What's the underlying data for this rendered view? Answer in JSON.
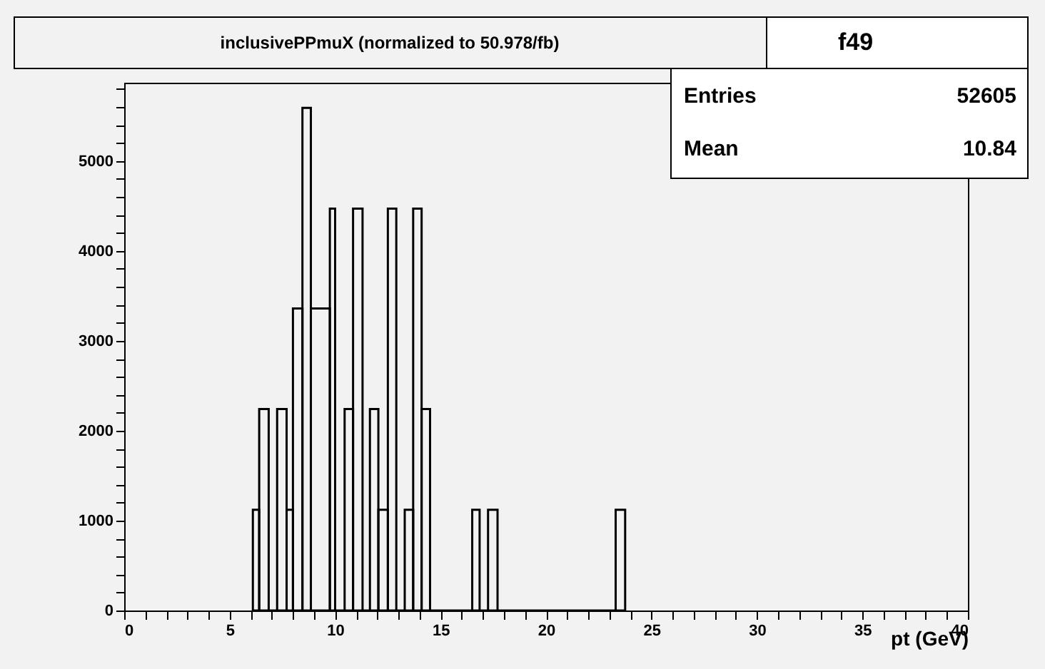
{
  "chart_data": {
    "type": "histogram",
    "title": "inclusivePPmuX (normalized to 50.978/fb)",
    "xlabel": "pt (GeV)",
    "color": "#000000",
    "bins": [
      6.1,
      6.4,
      6.85,
      7.25,
      7.7,
      8.0,
      8.45,
      8.85,
      9.75,
      10.0,
      10.45,
      10.85,
      11.3,
      11.65,
      12.05,
      12.5,
      12.9,
      13.3,
      13.7,
      14.1,
      14.5,
      16.5,
      16.85,
      17.25,
      17.7,
      23.3,
      23.75
    ],
    "values": [
      1120,
      2240,
      0,
      2240,
      1120,
      3360,
      5590,
      3360,
      4470,
      0,
      2240,
      4470,
      0,
      2240,
      1120,
      4470,
      0,
      1120,
      4470,
      2240,
      0,
      1120,
      0,
      1120,
      0,
      1120
    ],
    "xlim": [
      0,
      40
    ],
    "ylim": [
      0,
      5870
    ],
    "xticks": [
      0,
      {
        "value": 1,
        "label": null
      },
      {
        "value": 2,
        "label": null
      },
      {
        "value": 3,
        "label": null
      },
      {
        "value": 4,
        "label": null
      },
      5,
      {
        "value": 6,
        "label": null
      },
      {
        "value": 7,
        "label": null
      },
      {
        "value": 8,
        "label": null
      },
      {
        "value": 9,
        "label": null
      },
      10,
      {
        "value": 11,
        "label": null
      },
      {
        "value": 12,
        "label": null
      },
      {
        "value": 13,
        "label": null
      },
      {
        "value": 14,
        "label": null
      },
      15,
      {
        "value": 16,
        "label": null
      },
      {
        "value": 17,
        "label": null
      },
      {
        "value": 18,
        "label": null
      },
      {
        "value": 19,
        "label": null
      },
      20,
      {
        "value": 21,
        "label": null
      },
      {
        "value": 22,
        "label": null
      },
      {
        "value": 23,
        "label": null
      },
      {
        "value": 24,
        "label": null
      },
      25,
      {
        "value": 26,
        "label": null
      },
      {
        "value": 27,
        "label": null
      },
      {
        "value": 28,
        "label": null
      },
      {
        "value": 29,
        "label": null
      },
      30,
      {
        "value": 31,
        "label": null
      },
      {
        "value": 32,
        "label": null
      },
      {
        "value": 33,
        "label": null
      },
      {
        "value": 34,
        "label": null
      },
      35,
      {
        "value": 36,
        "label": null
      },
      {
        "value": 37,
        "label": null
      },
      {
        "value": 38,
        "label": null
      },
      {
        "value": 39,
        "label": null
      },
      40
    ],
    "yticks": [
      0,
      {
        "value": 200,
        "label": null
      },
      {
        "value": 400,
        "label": null
      },
      {
        "value": 600,
        "label": null
      },
      {
        "value": 800,
        "label": null
      },
      1000,
      {
        "value": 1200,
        "label": null
      },
      {
        "value": 1400,
        "label": null
      },
      {
        "value": 1600,
        "label": null
      },
      {
        "value": 1800,
        "label": null
      },
      2000,
      {
        "value": 2200,
        "label": null
      },
      {
        "value": 2400,
        "label": null
      },
      {
        "value": 2600,
        "label": null
      },
      {
        "value": 2800,
        "label": null
      },
      3000,
      {
        "value": 3200,
        "label": null
      },
      {
        "value": 3400,
        "label": null
      },
      {
        "value": 3600,
        "label": null
      },
      {
        "value": 3800,
        "label": null
      },
      4000,
      {
        "value": 4200,
        "label": null
      },
      {
        "value": 4400,
        "label": null
      },
      {
        "value": 4600,
        "label": null
      },
      {
        "value": 4800,
        "label": null
      },
      5000,
      {
        "value": 5200,
        "label": null
      },
      {
        "value": 5400,
        "label": null
      },
      {
        "value": 5600,
        "label": null
      },
      {
        "value": 5800,
        "label": null
      }
    ],
    "grid": false,
    "annotations": [
      "f49",
      "Entries",
      "52605",
      "Mean",
      "10.84"
    ]
  }
}
